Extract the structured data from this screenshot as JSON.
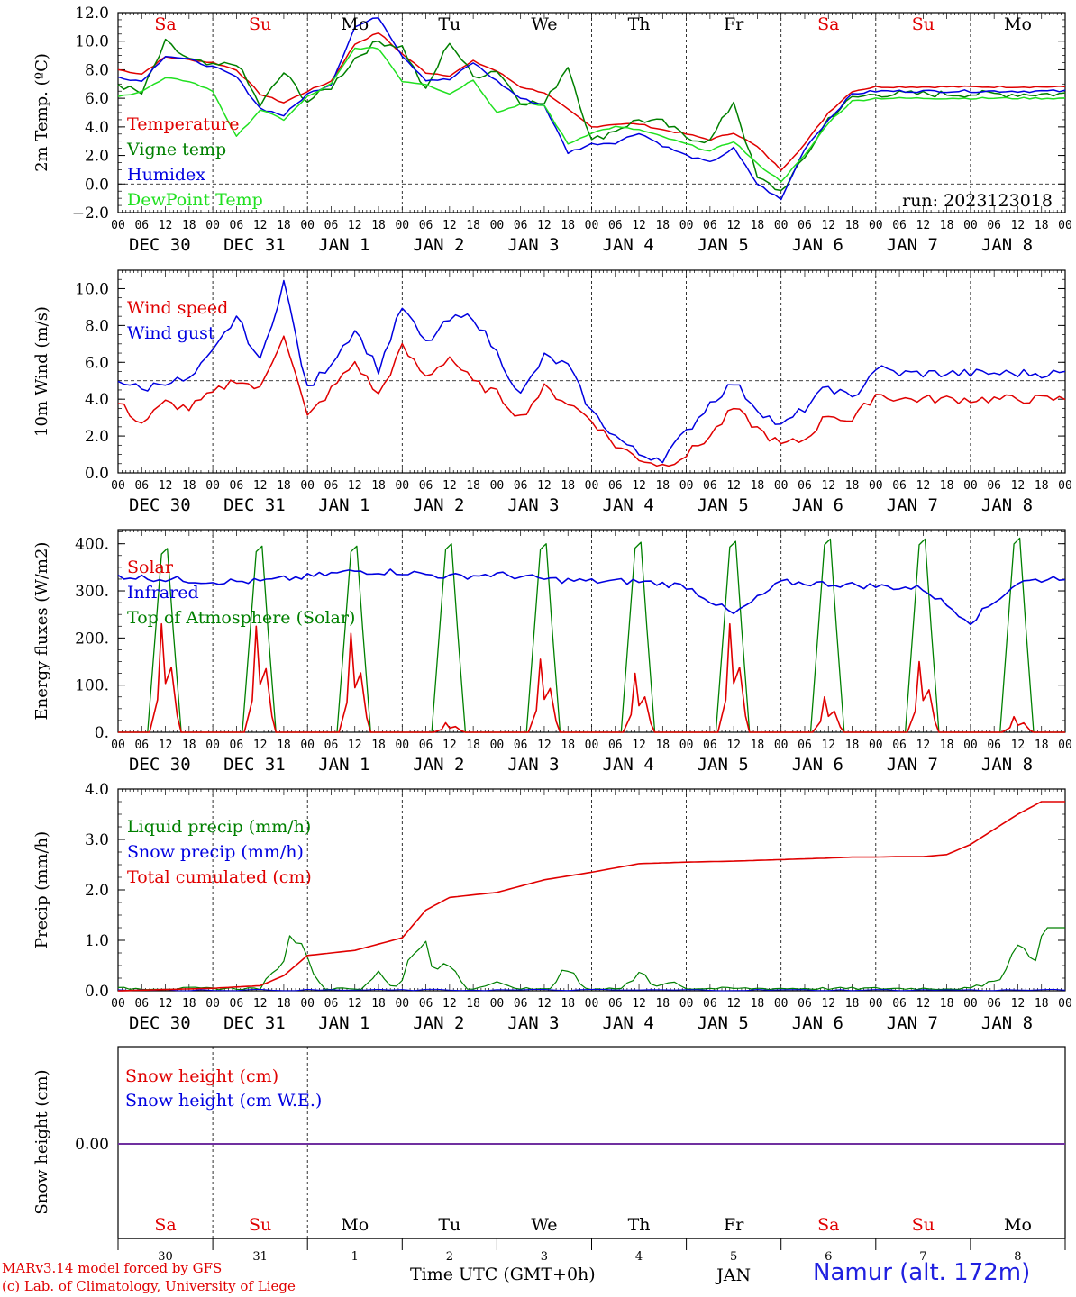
{
  "colors": {
    "red": "#e00000",
    "green": "#008000",
    "blue": "#0000e0",
    "lightgreen": "#20e020",
    "purple": "#7030a0",
    "grey": "#555555"
  },
  "day_names": [
    "Sa",
    "Su",
    "Mo",
    "Tu",
    "We",
    "Th",
    "Fr",
    "Sa",
    "Su",
    "Mo"
  ],
  "weekend": [
    true,
    true,
    false,
    false,
    false,
    false,
    false,
    true,
    true,
    false
  ],
  "date_labels": [
    "DEC 30",
    "DEC 31",
    "JAN  1",
    "JAN  2",
    "JAN  3",
    "JAN  4",
    "JAN  5",
    "JAN  6",
    "JAN  7",
    "JAN  8"
  ],
  "day_numbers": [
    "30",
    "31",
    "1",
    "2",
    "3",
    "4",
    "5",
    "6",
    "7",
    "8"
  ],
  "hour_ticks": [
    "00",
    "06",
    "12",
    "18"
  ],
  "run_label": "run: 2023123018",
  "footer": {
    "model": "MARv3.14 model forced by GFS",
    "lab": "(c) Lab. of Climatology, University of Liege",
    "xlabel": "Time UTC (GMT+0h)",
    "month": "JAN",
    "station": "Namur (alt. 172m)"
  },
  "chart_data": [
    {
      "type": "line",
      "ylabel": "2m Temp. (ºC)",
      "ylim": [
        -2,
        12
      ],
      "yticks": [
        "12.0",
        "10.0",
        "8.0",
        "6.0",
        "4.0",
        "2.0",
        "0.0",
        "−2.0"
      ],
      "ytick_values": [
        12,
        10,
        8,
        6,
        4,
        2,
        0,
        -2
      ],
      "reference_line": 0,
      "x_hours": [
        0,
        6,
        12,
        18,
        24,
        30,
        36,
        42,
        48,
        54,
        60,
        66,
        72,
        78,
        84,
        90,
        96,
        102,
        108,
        114,
        120,
        126,
        132,
        138,
        144,
        150,
        156,
        162,
        168,
        174,
        180,
        186,
        192,
        198,
        204,
        210,
        216,
        222,
        228,
        234,
        240
      ],
      "series": [
        {
          "name": "Temperature",
          "color": "red",
          "values": [
            8.0,
            7.7,
            8.9,
            8.7,
            8.5,
            8.0,
            6.3,
            5.7,
            6.5,
            7.2,
            9.8,
            10.6,
            9.1,
            7.8,
            7.6,
            8.6,
            7.9,
            6.8,
            6.4,
            5.2,
            4.0,
            4.2,
            4.2,
            3.8,
            3.5,
            3.1,
            3.6,
            2.6,
            1.0,
            2.8,
            5.0,
            6.5,
            6.8,
            6.8,
            6.8,
            6.8,
            6.8,
            6.8,
            6.8,
            6.8,
            6.8
          ]
        },
        {
          "name": "Vigne temp",
          "color": "green",
          "values": [
            7.0,
            6.3,
            9.9,
            8.7,
            8.2,
            8.5,
            5.5,
            7.8,
            5.8,
            6.8,
            8.8,
            10.0,
            9.6,
            6.5,
            10.0,
            7.5,
            8.0,
            5.8,
            5.6,
            8.3,
            3.0,
            3.8,
            4.5,
            4.3,
            3.3,
            3.0,
            5.8,
            0.4,
            -0.5,
            1.8,
            4.6,
            6.0,
            6.3,
            6.3,
            6.3,
            6.3,
            6.3,
            6.3,
            6.3,
            6.3,
            6.3
          ]
        },
        {
          "name": "Humidex",
          "color": "blue",
          "values": [
            7.5,
            7.2,
            9.0,
            8.7,
            8.2,
            7.5,
            5.3,
            4.8,
            6.3,
            7.0,
            11.0,
            11.7,
            9.0,
            7.3,
            7.3,
            8.5,
            7.2,
            6.0,
            5.5,
            2.2,
            2.8,
            2.9,
            3.6,
            2.7,
            2.0,
            1.5,
            2.5,
            0.0,
            -1.1,
            2.5,
            4.5,
            6.3,
            6.5,
            6.5,
            6.5,
            6.5,
            6.5,
            6.5,
            6.5,
            6.5,
            6.5
          ]
        },
        {
          "name": "DewPoint Temp",
          "color": "lightgreen",
          "values": [
            6.1,
            6.5,
            7.4,
            7.2,
            6.5,
            3.3,
            5.2,
            4.5,
            6.1,
            7.0,
            9.5,
            9.5,
            7.2,
            7.0,
            6.3,
            7.3,
            5.0,
            5.6,
            5.5,
            2.8,
            3.6,
            4.0,
            3.8,
            3.3,
            2.8,
            2.3,
            3.0,
            1.4,
            0.2,
            2.0,
            4.3,
            5.8,
            6.0,
            6.0,
            6.0,
            6.0,
            6.0,
            6.0,
            6.0,
            6.0,
            6.0
          ]
        }
      ]
    },
    {
      "type": "line",
      "ylabel": "10m Wind (m/s)",
      "ylim": [
        0,
        11
      ],
      "yticks": [
        "10.0",
        "8.0",
        "6.0",
        "4.0",
        "2.0",
        "0.0"
      ],
      "ytick_values": [
        10,
        8,
        6,
        4,
        2,
        0
      ],
      "reference_line": 5,
      "x_hours": [
        0,
        6,
        12,
        18,
        24,
        30,
        36,
        42,
        48,
        54,
        60,
        66,
        72,
        78,
        84,
        90,
        96,
        102,
        108,
        114,
        120,
        126,
        132,
        138,
        144,
        150,
        156,
        162,
        168,
        174,
        180,
        186,
        192,
        198,
        204,
        210,
        216,
        222,
        228,
        234,
        240
      ],
      "series": [
        {
          "name": "Wind speed",
          "color": "red",
          "values": [
            3.8,
            2.7,
            3.8,
            3.5,
            4.3,
            5.1,
            4.5,
            7.6,
            3.0,
            4.5,
            6.0,
            4.2,
            6.8,
            5.2,
            6.3,
            4.9,
            4.3,
            3.0,
            4.6,
            3.8,
            2.9,
            1.5,
            0.8,
            0.4,
            1.0,
            2.0,
            3.5,
            2.4,
            1.5,
            1.8,
            3.2,
            2.8,
            4.3,
            4.0,
            4.0,
            4.0,
            4.0,
            4.0,
            4.0,
            4.0,
            4.0
          ]
        },
        {
          "name": "Wind gust",
          "color": "blue",
          "values": [
            5.1,
            4.5,
            5.0,
            5.0,
            6.5,
            8.5,
            6.0,
            10.4,
            4.5,
            6.0,
            7.8,
            5.6,
            9.0,
            7.0,
            8.3,
            8.5,
            6.5,
            4.2,
            6.3,
            5.8,
            3.3,
            2.0,
            1.0,
            0.8,
            2.2,
            3.8,
            4.9,
            3.5,
            2.5,
            3.5,
            4.7,
            4.0,
            5.7,
            5.4,
            5.4,
            5.4,
            5.4,
            5.4,
            5.4,
            5.4,
            5.4
          ]
        }
      ]
    },
    {
      "type": "line",
      "ylabel": "Energy fluxes (W/m2)",
      "ylim": [
        0,
        430
      ],
      "yticks": [
        "400.",
        "300.",
        "200.",
        "100.",
        "0."
      ],
      "ytick_values": [
        400,
        300,
        200,
        100,
        0
      ],
      "series": [
        {
          "name": "Solar",
          "color": "red",
          "daily_peak": [
            230,
            225,
            210,
            20,
            155,
            125,
            230,
            75,
            150,
            33
          ]
        },
        {
          "name": "Infrared",
          "color": "blue",
          "values": [
            332,
            325,
            320,
            320,
            330,
            342,
            340,
            330,
            335,
            325,
            320,
            320,
            310,
            250,
            318,
            315,
            310,
            305,
            235,
            318,
            330
          ]
        },
        {
          "name": "Top of Atmosphere (Solar)",
          "color": "green",
          "daily_peak": [
            390,
            395,
            395,
            400,
            400,
            403,
            405,
            410,
            410,
            412
          ]
        }
      ]
    },
    {
      "type": "line",
      "ylabel": "Precip (mm/h)",
      "ylim": [
        0,
        4
      ],
      "yticks": [
        "4.0",
        "3.0",
        "2.0",
        "1.0",
        "0.0"
      ],
      "ytick_values": [
        4,
        3,
        2,
        1,
        0
      ],
      "series": [
        {
          "name": "Liquid precip (mm/h)",
          "color": "green"
        },
        {
          "name": "Snow precip (mm/h)",
          "color": "blue"
        },
        {
          "name": "Total cumulated (cm)",
          "color": "red",
          "x_hours": [
            0,
            24,
            36,
            42,
            48,
            60,
            72,
            78,
            84,
            96,
            108,
            120,
            132,
            144,
            156,
            168,
            180,
            186,
            192,
            198,
            204,
            210,
            216,
            222,
            228,
            234,
            240
          ],
          "values": [
            0.0,
            0.05,
            0.1,
            0.3,
            0.7,
            0.8,
            1.05,
            1.6,
            1.85,
            1.95,
            2.2,
            2.35,
            2.52,
            2.55,
            2.57,
            2.6,
            2.63,
            2.65,
            2.65,
            2.66,
            2.66,
            2.7,
            2.9,
            3.2,
            3.5,
            3.75,
            3.75
          ]
        }
      ]
    },
    {
      "type": "line",
      "ylabel": "Snow height (cm)",
      "yticks": [
        "0.00"
      ],
      "ytick_values": [
        0
      ],
      "series": [
        {
          "name": "Snow height (cm)",
          "color": "red",
          "values": [
            0,
            0
          ]
        },
        {
          "name": "Snow height (cm W.E.)",
          "color": "blue",
          "values": [
            0,
            0
          ]
        }
      ]
    }
  ]
}
